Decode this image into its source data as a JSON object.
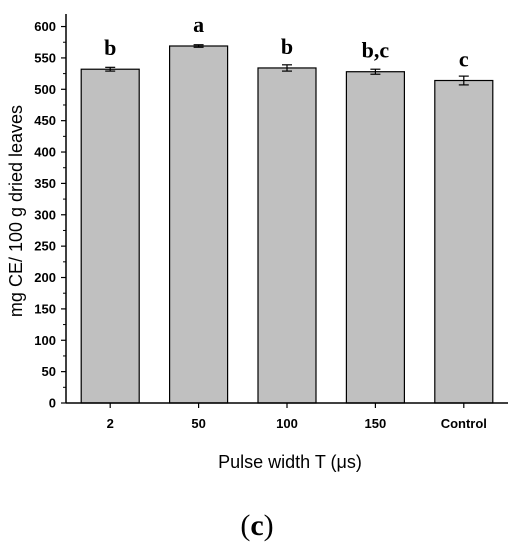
{
  "chart_data": {
    "type": "bar",
    "categories": [
      "2",
      "50",
      "100",
      "150",
      "Control"
    ],
    "values": [
      532,
      569,
      534,
      528,
      514
    ],
    "errors": [
      3,
      2,
      5,
      4,
      7
    ],
    "significance_letters": [
      "b",
      "a",
      "b",
      "b,c",
      "c"
    ],
    "xlabel": "Pulse width T (μs)",
    "ylabel": "mg CE/ 100 g dried leaves",
    "ylim": [
      0,
      620
    ],
    "yticks": [
      0,
      50,
      100,
      150,
      200,
      250,
      300,
      350,
      400,
      450,
      500,
      550,
      600
    ],
    "grid": false,
    "bar_color": "#c0c0c0",
    "edge_color": "#000000"
  },
  "panel_label": {
    "open": "(",
    "letter": "c",
    "close": ")"
  }
}
